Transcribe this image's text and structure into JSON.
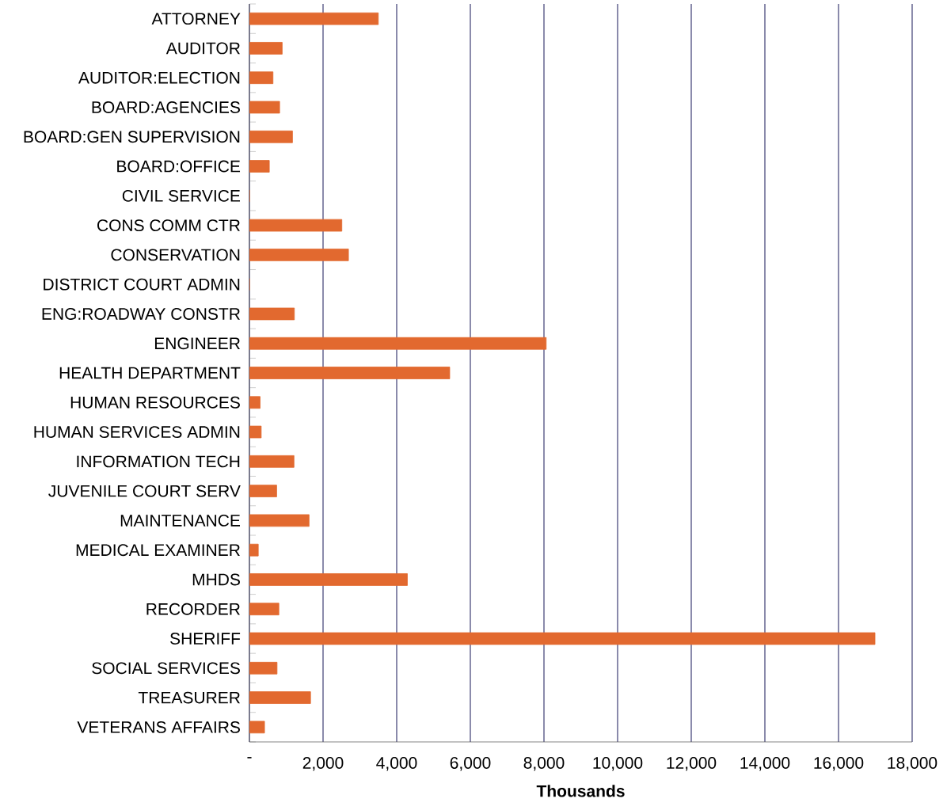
{
  "chart_data": {
    "type": "bar",
    "orientation": "horizontal",
    "xlabel": "Thousands",
    "categories": [
      "ATTORNEY",
      "AUDITOR",
      "AUDITOR:ELECTION",
      "BOARD:AGENCIES",
      "BOARD:GEN SUPERVISION",
      "BOARD:OFFICE",
      "CIVIL SERVICE",
      "CONS COMM CTR",
      "CONSERVATION",
      "DISTRICT COURT ADMIN",
      "ENG:ROADWAY CONSTR",
      "ENGINEER",
      "HEALTH DEPARTMENT",
      "HUMAN RESOURCES",
      "HUMAN SERVICES ADMIN",
      "INFORMATION TECH",
      "JUVENILE COURT SERV",
      "MAINTENANCE",
      "MEDICAL EXAMINER",
      "MHDS",
      "RECORDER",
      "SHERIFF",
      "SOCIAL SERVICES",
      "TREASURER",
      "VETERANS AFFAIRS"
    ],
    "values": [
      3500,
      890,
      640,
      820,
      1170,
      540,
      0,
      2510,
      2690,
      0,
      1220,
      8060,
      5440,
      290,
      320,
      1210,
      740,
      1620,
      240,
      4290,
      800,
      16990,
      750,
      1660,
      410
    ],
    "color": "#e2692f",
    "xlim": [
      0,
      18000
    ],
    "xticks": [
      {
        "value": 0,
        "label": "-"
      },
      {
        "value": 2000,
        "label": "2,000"
      },
      {
        "value": 4000,
        "label": "4,000"
      },
      {
        "value": 6000,
        "label": "6,000"
      },
      {
        "value": 8000,
        "label": "8,000"
      },
      {
        "value": 10000,
        "label": "10,000"
      },
      {
        "value": 12000,
        "label": "12,000"
      },
      {
        "value": 14000,
        "label": "14,000"
      },
      {
        "value": 16000,
        "label": "16,000"
      },
      {
        "value": 18000,
        "label": "18,000"
      }
    ],
    "grid": "x"
  }
}
